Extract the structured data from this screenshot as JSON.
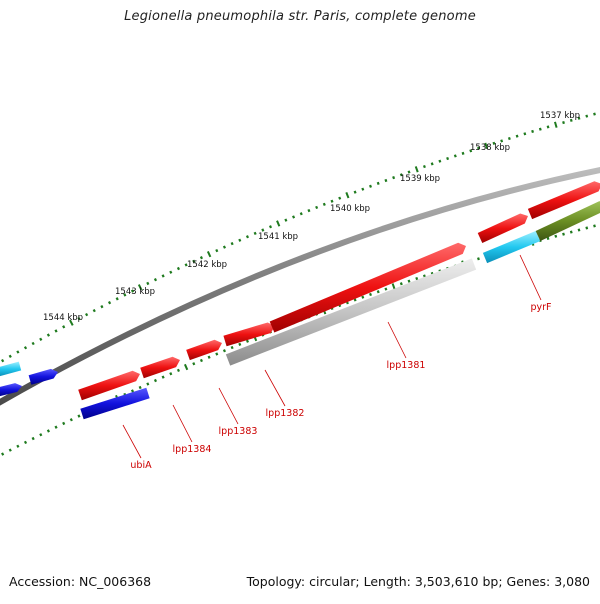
{
  "title": "Legionella pneumophila str. Paris, complete genome",
  "footer": {
    "accession": "Accession: NC_006368",
    "info": "Topology: circular; Length: 3,503,610 bp; Genes: 3,080"
  },
  "colors": {
    "backbone": "#808080",
    "tick": "#1e7a1e",
    "gene_red": "#ee1111",
    "gene_blue": "#1111dd",
    "gene_cyan": "#22c8f0",
    "gene_grey": "#bdbdbd",
    "gene_olive": "#6b8e23",
    "gene_label": "#cc0000"
  },
  "scale_labels": [
    "1537 kbp",
    "1538 kbp",
    "1539 kbp",
    "1540 kbp",
    "1541 kbp",
    "1542 kbp",
    "1543 kbp",
    "1544 kbp"
  ],
  "gene_labels": [
    "pyrF",
    "lpp1381",
    "lpp1382",
    "lpp1383",
    "lpp1384",
    "ubiA"
  ]
}
